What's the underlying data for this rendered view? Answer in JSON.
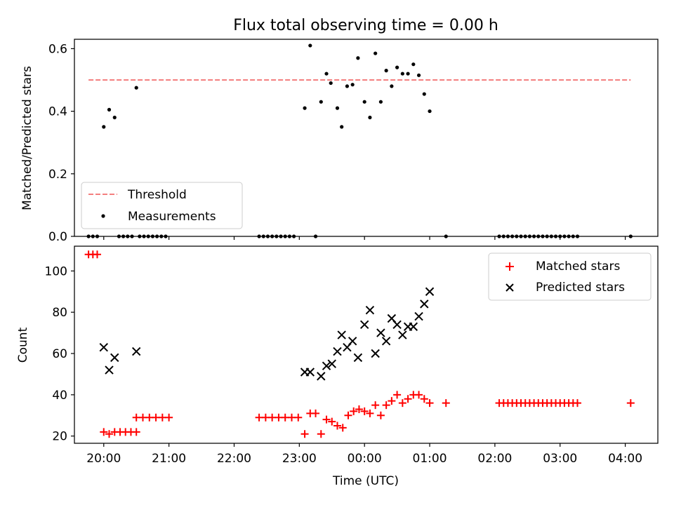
{
  "chart_data": [
    {
      "type": "scatter",
      "title": "Flux total observing time = 0.00 h",
      "xlabel": "",
      "ylabel": "Matched/Predicted stars",
      "xlim": [
        "19:33",
        "04:30"
      ],
      "ylim": [
        0,
        0.63
      ],
      "yticks": [
        "0.0",
        "0.2",
        "0.4",
        "0.6"
      ],
      "legend_position": "lower-left",
      "threshold": {
        "name": "Threshold",
        "y": 0.5,
        "x_range": [
          "19:46",
          "04:05"
        ],
        "color": "#f47f7f"
      },
      "series": [
        {
          "name": "Measurements",
          "color": "#000000",
          "points": [
            [
              "19:46",
              0
            ],
            [
              "19:50",
              0
            ],
            [
              "19:54",
              0
            ],
            [
              "20:14",
              0
            ],
            [
              "20:18",
              0
            ],
            [
              "20:22",
              0
            ],
            [
              "20:26",
              0
            ],
            [
              "20:33",
              0
            ],
            [
              "20:37",
              0
            ],
            [
              "20:41",
              0
            ],
            [
              "20:45",
              0
            ],
            [
              "20:49",
              0
            ],
            [
              "20:53",
              0
            ],
            [
              "20:57",
              0
            ],
            [
              "22:23",
              0
            ],
            [
              "22:27",
              0
            ],
            [
              "22:31",
              0
            ],
            [
              "22:35",
              0
            ],
            [
              "22:39",
              0
            ],
            [
              "22:43",
              0
            ],
            [
              "22:47",
              0
            ],
            [
              "22:51",
              0
            ],
            [
              "22:55",
              0
            ],
            [
              "23:15",
              0
            ],
            [
              "01:15",
              0
            ],
            [
              "02:04",
              0
            ],
            [
              "02:08",
              0
            ],
            [
              "02:12",
              0
            ],
            [
              "02:16",
              0
            ],
            [
              "02:20",
              0
            ],
            [
              "02:24",
              0
            ],
            [
              "02:28",
              0
            ],
            [
              "02:32",
              0
            ],
            [
              "02:36",
              0
            ],
            [
              "02:40",
              0
            ],
            [
              "02:44",
              0
            ],
            [
              "02:48",
              0
            ],
            [
              "02:52",
              0
            ],
            [
              "02:56",
              0
            ],
            [
              "03:00",
              0
            ],
            [
              "03:04",
              0
            ],
            [
              "03:08",
              0
            ],
            [
              "03:12",
              0
            ],
            [
              "03:16",
              0
            ],
            [
              "04:05",
              0
            ],
            [
              "20:00",
              0.35
            ],
            [
              "20:05",
              0.405
            ],
            [
              "20:10",
              0.38
            ],
            [
              "20:30",
              0.475
            ],
            [
              "23:05",
              0.41
            ],
            [
              "23:10",
              0.61
            ],
            [
              "23:20",
              0.43
            ],
            [
              "23:25",
              0.52
            ],
            [
              "23:29",
              0.49
            ],
            [
              "23:35",
              0.41
            ],
            [
              "23:39",
              0.35
            ],
            [
              "23:44",
              0.48
            ],
            [
              "23:49",
              0.485
            ],
            [
              "23:54",
              0.57
            ],
            [
              "00:00",
              0.43
            ],
            [
              "00:05",
              0.38
            ],
            [
              "00:10",
              0.585
            ],
            [
              "00:15",
              0.43
            ],
            [
              "00:20",
              0.53
            ],
            [
              "00:25",
              0.48
            ],
            [
              "00:30",
              0.54
            ],
            [
              "00:35",
              0.52
            ],
            [
              "00:40",
              0.52
            ],
            [
              "00:45",
              0.55
            ],
            [
              "00:50",
              0.515
            ],
            [
              "00:55",
              0.455
            ],
            [
              "01:00",
              0.4
            ]
          ]
        }
      ]
    },
    {
      "type": "scatter",
      "title": "",
      "xlabel": "Time (UTC)",
      "ylabel": "Count",
      "xlim": [
        "19:33",
        "04:30"
      ],
      "ylim": [
        16.5,
        112
      ],
      "yticks": [
        "20",
        "40",
        "60",
        "80",
        "100"
      ],
      "xticks": [
        "20:00",
        "21:00",
        "22:00",
        "23:00",
        "00:00",
        "01:00",
        "02:00",
        "03:00",
        "04:00"
      ],
      "legend_position": "upper-right",
      "series": [
        {
          "name": "Matched stars",
          "color": "#ff0000",
          "marker": "plus",
          "points": [
            [
              "19:46",
              108
            ],
            [
              "19:50",
              108
            ],
            [
              "19:54",
              108
            ],
            [
              "20:00",
              22
            ],
            [
              "20:05",
              21
            ],
            [
              "20:10",
              22
            ],
            [
              "20:15",
              22
            ],
            [
              "20:20",
              22
            ],
            [
              "20:25",
              22
            ],
            [
              "20:30",
              22
            ],
            [
              "20:30",
              29
            ],
            [
              "20:36",
              29
            ],
            [
              "20:42",
              29
            ],
            [
              "20:48",
              29
            ],
            [
              "20:54",
              29
            ],
            [
              "21:00",
              29
            ],
            [
              "22:23",
              29
            ],
            [
              "22:29",
              29
            ],
            [
              "22:35",
              29
            ],
            [
              "22:41",
              29
            ],
            [
              "22:47",
              29
            ],
            [
              "22:53",
              29
            ],
            [
              "22:59",
              29
            ],
            [
              "23:05",
              21
            ],
            [
              "23:10",
              31
            ],
            [
              "23:15",
              31
            ],
            [
              "23:20",
              21
            ],
            [
              "23:25",
              28
            ],
            [
              "23:30",
              27
            ],
            [
              "23:35",
              25
            ],
            [
              "23:40",
              24
            ],
            [
              "23:45",
              30
            ],
            [
              "23:50",
              32
            ],
            [
              "23:55",
              33
            ],
            [
              "00:00",
              32
            ],
            [
              "00:05",
              31
            ],
            [
              "00:10",
              35
            ],
            [
              "00:15",
              30
            ],
            [
              "00:20",
              35
            ],
            [
              "00:25",
              37
            ],
            [
              "00:30",
              40
            ],
            [
              "00:35",
              36
            ],
            [
              "00:40",
              38
            ],
            [
              "00:45",
              40
            ],
            [
              "00:50",
              40
            ],
            [
              "00:55",
              38
            ],
            [
              "01:00",
              36
            ],
            [
              "01:15",
              36
            ],
            [
              "02:04",
              36
            ],
            [
              "02:08",
              36
            ],
            [
              "02:12",
              36
            ],
            [
              "02:16",
              36
            ],
            [
              "02:20",
              36
            ],
            [
              "02:24",
              36
            ],
            [
              "02:28",
              36
            ],
            [
              "02:32",
              36
            ],
            [
              "02:36",
              36
            ],
            [
              "02:40",
              36
            ],
            [
              "02:44",
              36
            ],
            [
              "02:48",
              36
            ],
            [
              "02:52",
              36
            ],
            [
              "02:56",
              36
            ],
            [
              "03:00",
              36
            ],
            [
              "03:04",
              36
            ],
            [
              "03:08",
              36
            ],
            [
              "03:12",
              36
            ],
            [
              "03:16",
              36
            ],
            [
              "04:05",
              36
            ]
          ]
        },
        {
          "name": "Predicted stars",
          "color": "#000000",
          "marker": "x",
          "points": [
            [
              "20:00",
              63
            ],
            [
              "20:05",
              52
            ],
            [
              "20:10",
              58
            ],
            [
              "20:30",
              61
            ],
            [
              "23:05",
              51
            ],
            [
              "23:10",
              51
            ],
            [
              "23:20",
              49
            ],
            [
              "23:25",
              54
            ],
            [
              "23:30",
              55
            ],
            [
              "23:35",
              61
            ],
            [
              "23:39",
              69
            ],
            [
              "23:44",
              63
            ],
            [
              "23:49",
              66
            ],
            [
              "23:54",
              58
            ],
            [
              "00:00",
              74
            ],
            [
              "00:05",
              81
            ],
            [
              "00:10",
              60
            ],
            [
              "00:15",
              70
            ],
            [
              "00:20",
              66
            ],
            [
              "00:25",
              77
            ],
            [
              "00:30",
              74
            ],
            [
              "00:35",
              69
            ],
            [
              "00:40",
              73
            ],
            [
              "00:45",
              73
            ],
            [
              "00:50",
              78
            ],
            [
              "00:55",
              84
            ],
            [
              "01:00",
              90
            ]
          ]
        }
      ]
    }
  ]
}
